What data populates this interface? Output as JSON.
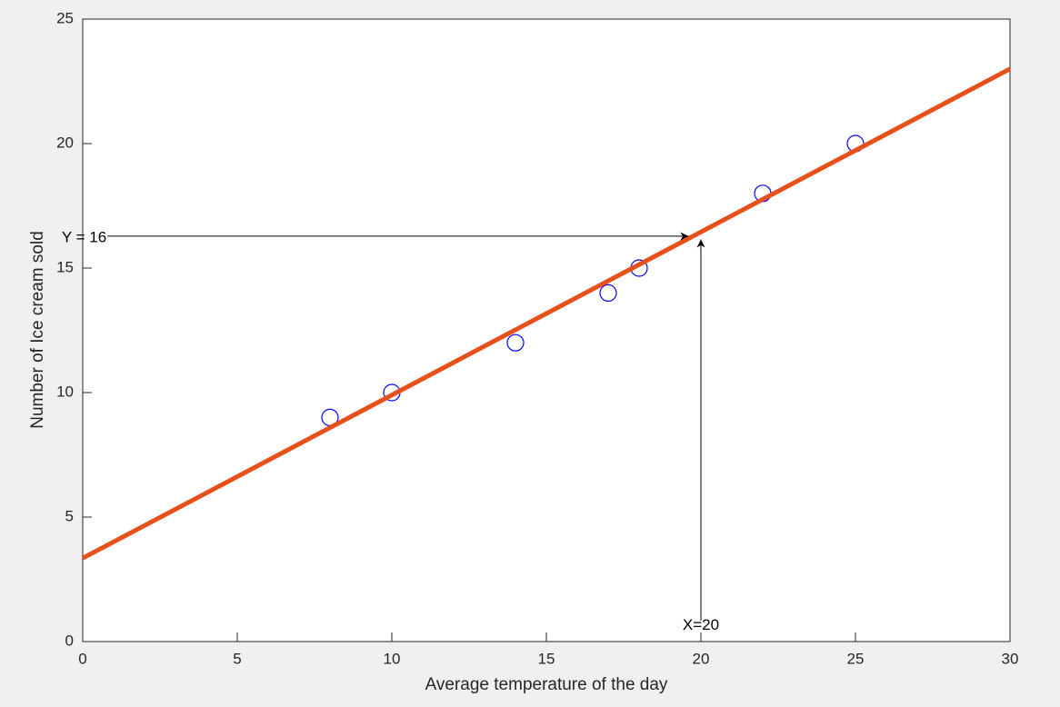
{
  "chart_data": {
    "type": "scatter",
    "xlabel": "Average temperature of the day",
    "ylabel": "Number of Ice cream sold",
    "xlim": [
      0,
      30
    ],
    "ylim": [
      0,
      25
    ],
    "xticks": [
      0,
      5,
      10,
      15,
      20,
      25,
      30
    ],
    "yticks": [
      0,
      5,
      10,
      15,
      20,
      25
    ],
    "grid": false,
    "series": [
      {
        "type": "scatter",
        "color": "#0000ff",
        "x": [
          8,
          10,
          14,
          17,
          18,
          22,
          25
        ],
        "values": [
          9,
          10,
          12,
          14,
          15,
          18,
          20
        ]
      },
      {
        "type": "line",
        "color": "#e8501a",
        "x": [
          0,
          30
        ],
        "values": [
          3.35,
          23.0
        ]
      }
    ],
    "annotations": [
      {
        "text": "Y = 16",
        "from": [
          0.8,
          16.28
        ],
        "to": [
          19.6,
          16.28
        ]
      },
      {
        "text": "X=20",
        "from": [
          20.0,
          0.85
        ],
        "to": [
          20.0,
          16.15
        ]
      }
    ]
  }
}
